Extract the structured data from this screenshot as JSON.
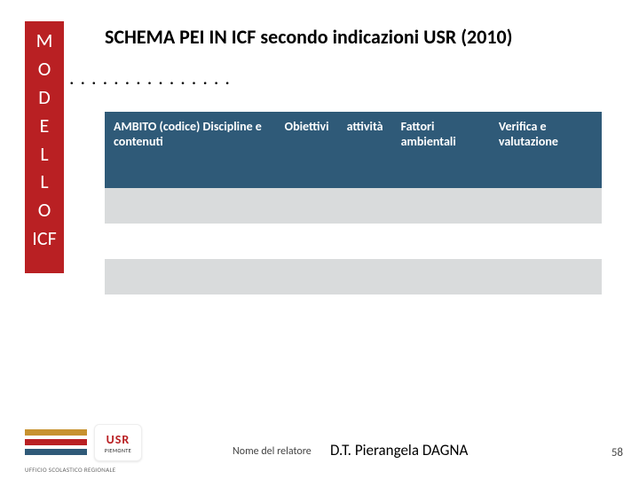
{
  "sidebar": {
    "letters": [
      "M",
      "O",
      "D",
      "E",
      "L",
      "L",
      "O",
      "ICF"
    ]
  },
  "title": "SCHEMA PEI IN ICF secondo indicazioni USR (2010)",
  "dots": ". . . . . . . . . . . . . . .",
  "table": {
    "headers": [
      "AMBITO (codice) Discipline e contenuti",
      "Obiettivi",
      "attività",
      "Fattori ambientali",
      "Verifica e valutazione"
    ]
  },
  "footer": {
    "label": "Nome del relatore",
    "name": "D.T. Pierangela DAGNA",
    "page": "58"
  },
  "logo": {
    "usr": "USR",
    "region": "PIEMONTE",
    "office": "UFFICIO SCOLASTICO REGIONALE"
  }
}
